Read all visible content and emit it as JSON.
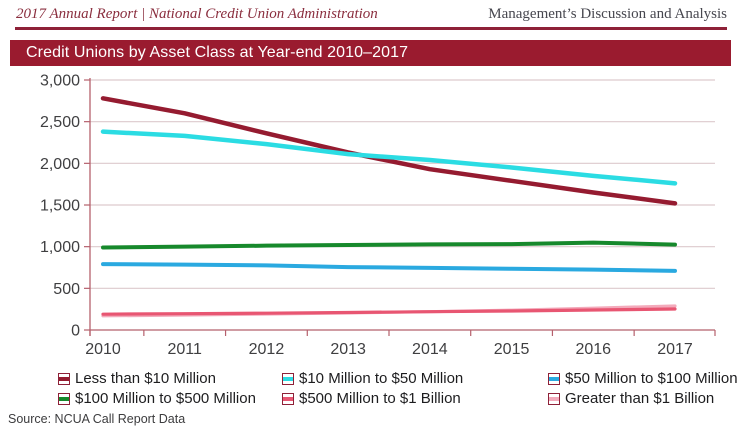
{
  "header": {
    "left": "2017 Annual Report | National Credit Union Administration",
    "right": "Management’s Discussion and Analysis"
  },
  "banner": {
    "title": "Credit Unions by Asset Class at Year-end 2010–2017"
  },
  "source": "Source: NCUA Call Report Data",
  "colors": {
    "banner_bg": "#9a1b2f",
    "header_rule": "#8e2138",
    "legend_border": "#8e2138",
    "axis": "#b5606c",
    "grid": "#ddc9cd",
    "label": "#3f3f41"
  },
  "chart_data": {
    "type": "line",
    "title": "Credit Unions by Asset Class at Year-end 2010–2017",
    "x": [
      2010,
      2011,
      2012,
      2013,
      2014,
      2015,
      2016,
      2017
    ],
    "xlabel": "",
    "ylabel": "",
    "ylim": [
      0,
      3000
    ],
    "grid": true,
    "legend_position": "bottom",
    "y_ticks": [
      {
        "v": 0,
        "label": "0"
      },
      {
        "v": 500,
        "label": "500"
      },
      {
        "v": 1000,
        "label": "1,000"
      },
      {
        "v": 1500,
        "label": "1,500"
      },
      {
        "v": 2000,
        "label": "2,000"
      },
      {
        "v": 2500,
        "label": "2,500"
      },
      {
        "v": 3000,
        "label": "3,000"
      }
    ],
    "series": [
      {
        "name": "Less than $10 Million",
        "color": "#951b30",
        "values": [
          2780,
          2600,
          2360,
          2130,
          1930,
          1790,
          1650,
          1520
        ]
      },
      {
        "name": "$10 Million to $50 Million",
        "color": "#2bdce3",
        "values": [
          2380,
          2330,
          2230,
          2110,
          2040,
          1950,
          1850,
          1760
        ]
      },
      {
        "name": "$50 Million to $100 Million",
        "color": "#2aa9e0",
        "values": [
          790,
          785,
          775,
          755,
          745,
          735,
          725,
          710
        ]
      },
      {
        "name": "$100 Million to $500 Million",
        "color": "#17892c",
        "values": [
          990,
          1000,
          1012,
          1020,
          1028,
          1030,
          1048,
          1025
        ]
      },
      {
        "name": "$500 Million to $1 Billion",
        "color": "#e85672",
        "values": [
          190,
          196,
          202,
          210,
          220,
          228,
          240,
          252
        ]
      },
      {
        "name": "Greater than $1 Billion",
        "color": "#f3aabb",
        "values": [
          170,
          180,
          192,
          205,
          220,
          238,
          262,
          288
        ]
      }
    ]
  }
}
